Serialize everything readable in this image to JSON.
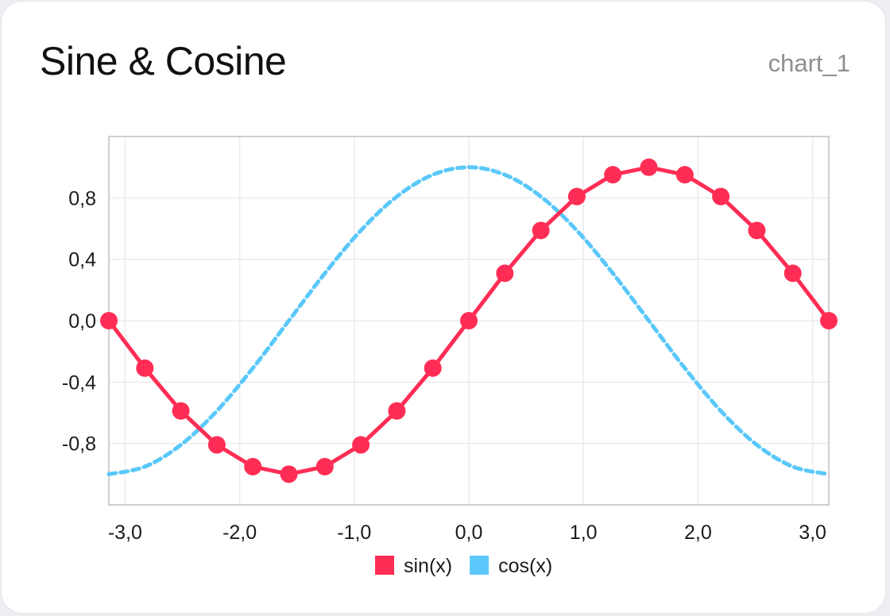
{
  "header": {
    "title": "Sine & Cosine",
    "chart_id": "chart_1"
  },
  "chart_data": {
    "type": "line",
    "title": "Sine & Cosine",
    "xlabel": "",
    "ylabel": "",
    "xlim": [
      -3.1416,
      3.1416
    ],
    "ylim": [
      -1.2,
      1.2
    ],
    "grid": true,
    "legend_position": "bottom",
    "x_ticks": [
      -3.0,
      -2.0,
      -1.0,
      0.0,
      1.0,
      2.0,
      3.0
    ],
    "x_tick_labels": [
      "-3,0",
      "-2,0",
      "-1,0",
      "0,0",
      "1,0",
      "2,0",
      "3,0"
    ],
    "y_ticks": [
      -0.8,
      -0.4,
      0.0,
      0.4,
      0.8
    ],
    "y_tick_labels": [
      "-0,8",
      "-0,4",
      "0,0",
      "0,4",
      "0,8"
    ],
    "x": [
      -3.1416,
      -2.8274,
      -2.5133,
      -2.1991,
      -1.885,
      -1.5708,
      -1.2566,
      -0.9425,
      -0.6283,
      -0.3142,
      0.0,
      0.3142,
      0.6283,
      0.9425,
      1.2566,
      1.5708,
      1.885,
      2.1991,
      2.5133,
      2.8274,
      3.1416
    ],
    "series": [
      {
        "name": "sin(x)",
        "color": "#ff2d55",
        "style": "solid-markers",
        "values": [
          0.0,
          -0.309,
          -0.588,
          -0.809,
          -0.951,
          -1.0,
          -0.951,
          -0.809,
          -0.588,
          -0.309,
          0.0,
          0.309,
          0.588,
          0.809,
          0.951,
          1.0,
          0.951,
          0.809,
          0.588,
          0.309,
          0.0
        ]
      },
      {
        "name": "cos(x)",
        "color": "#5ac8fa",
        "style": "dashed",
        "values": [
          -1.0,
          -0.951,
          -0.809,
          -0.588,
          -0.309,
          0.0,
          0.309,
          0.588,
          0.809,
          0.951,
          1.0,
          0.951,
          0.809,
          0.588,
          0.309,
          0.0,
          -0.309,
          -0.588,
          -0.809,
          -0.951,
          -1.0
        ]
      }
    ]
  }
}
